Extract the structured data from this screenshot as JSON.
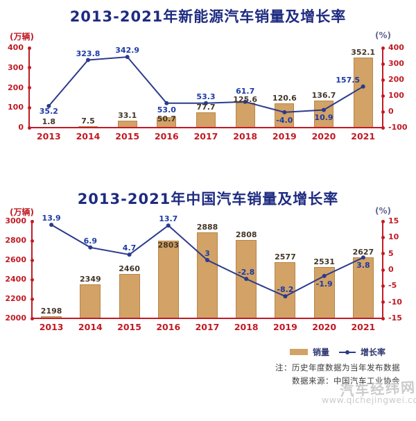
{
  "chart_data": [
    {
      "type": "bar+line",
      "title": "2013-2021年新能源汽车销量及增长率",
      "left_axis_unit": "(万辆)",
      "right_axis_unit": "(%)",
      "categories": [
        "2013",
        "2014",
        "2015",
        "2016",
        "2017",
        "2018",
        "2019",
        "2020",
        "2021"
      ],
      "left_axis": {
        "range": [
          0,
          400
        ],
        "ticks": [
          400,
          300,
          200,
          100,
          0
        ]
      },
      "right_axis": {
        "range": [
          -100,
          400
        ],
        "ticks": [
          400,
          300,
          200,
          100,
          0,
          -100
        ]
      },
      "series": [
        {
          "name": "销量",
          "type": "bar",
          "axis": "left",
          "values": [
            1.8,
            7.5,
            33.1,
            50.7,
            77.7,
            125.6,
            120.6,
            136.7,
            352.1
          ],
          "labels": [
            "1.8",
            "7.5",
            "33.1",
            "50.7",
            "77.7",
            "125.6",
            "120.6",
            "136.7",
            "352.1"
          ]
        },
        {
          "name": "增长率",
          "type": "line",
          "axis": "right",
          "values": [
            35.2,
            323.8,
            342.9,
            53.0,
            53.3,
            61.7,
            -4.0,
            10.9,
            157.5
          ],
          "labels": [
            "35.2",
            "323.8",
            "342.9",
            "53.0",
            "53.3",
            "61.7",
            "-4.0",
            "10.9",
            "157.5"
          ],
          "label_side": [
            "below",
            "above",
            "above",
            "below",
            "above",
            "above",
            "below",
            "below",
            "above"
          ]
        }
      ]
    },
    {
      "type": "bar+line",
      "title": "2013-2021年中国汽车销量及增长率",
      "left_axis_unit": "(万辆)",
      "right_axis_unit": "(%)",
      "categories": [
        "2013",
        "2014",
        "2015",
        "2016",
        "2017",
        "2018",
        "2019",
        "2020",
        "2021"
      ],
      "left_axis": {
        "range": [
          2000,
          3000
        ],
        "ticks": [
          3000,
          2800,
          2600,
          2400,
          2200,
          2000
        ]
      },
      "right_axis": {
        "range": [
          -15,
          15
        ],
        "ticks": [
          15,
          10,
          5,
          0,
          -5,
          -10,
          -15
        ]
      },
      "series": [
        {
          "name": "销量",
          "type": "bar",
          "axis": "left",
          "values": [
            2198,
            2349,
            2460,
            2803,
            2888,
            2808,
            2577,
            2531,
            2627
          ],
          "labels": [
            "2198",
            "2349",
            "2460",
            "2803",
            "2888",
            "2808",
            "2577",
            "2531",
            "2627"
          ]
        },
        {
          "name": "增长率",
          "type": "line",
          "axis": "right",
          "values": [
            13.9,
            6.9,
            4.7,
            13.7,
            3,
            -2.8,
            -8.2,
            -1.9,
            3.8
          ],
          "labels": [
            "13.9",
            "6.9",
            "4.7",
            "13.7",
            "3",
            "-2.8",
            "-8.2",
            "-1.9",
            "3.8"
          ],
          "label_side": [
            "above",
            "above",
            "above",
            "above",
            "above",
            "above",
            "above",
            "below",
            "below"
          ]
        }
      ]
    }
  ],
  "legend": {
    "items": [
      {
        "label": "销量",
        "marker": "bar-swatch"
      },
      {
        "label": "增长率",
        "marker": "line-marker"
      }
    ]
  },
  "notes": {
    "line1": "注：历史年度数据为当年发布数据",
    "line2": "数据来源：中国汽车工业协会"
  },
  "watermark": {
    "site_name": "汽车经纬网",
    "site_url": "www.qichejingwei.com"
  },
  "colors": {
    "axis_red": "#c11a24",
    "bar_fill": "#d2a266",
    "line_navy": "#2b3a8c",
    "line_label": "#1c3aa4",
    "bar_label": "#433628",
    "title_navy": "#1e2b80",
    "pct_unit": "#5f6591",
    "note_gray": "#3b3b3b",
    "watermark_gray": "#cbcbcb"
  }
}
